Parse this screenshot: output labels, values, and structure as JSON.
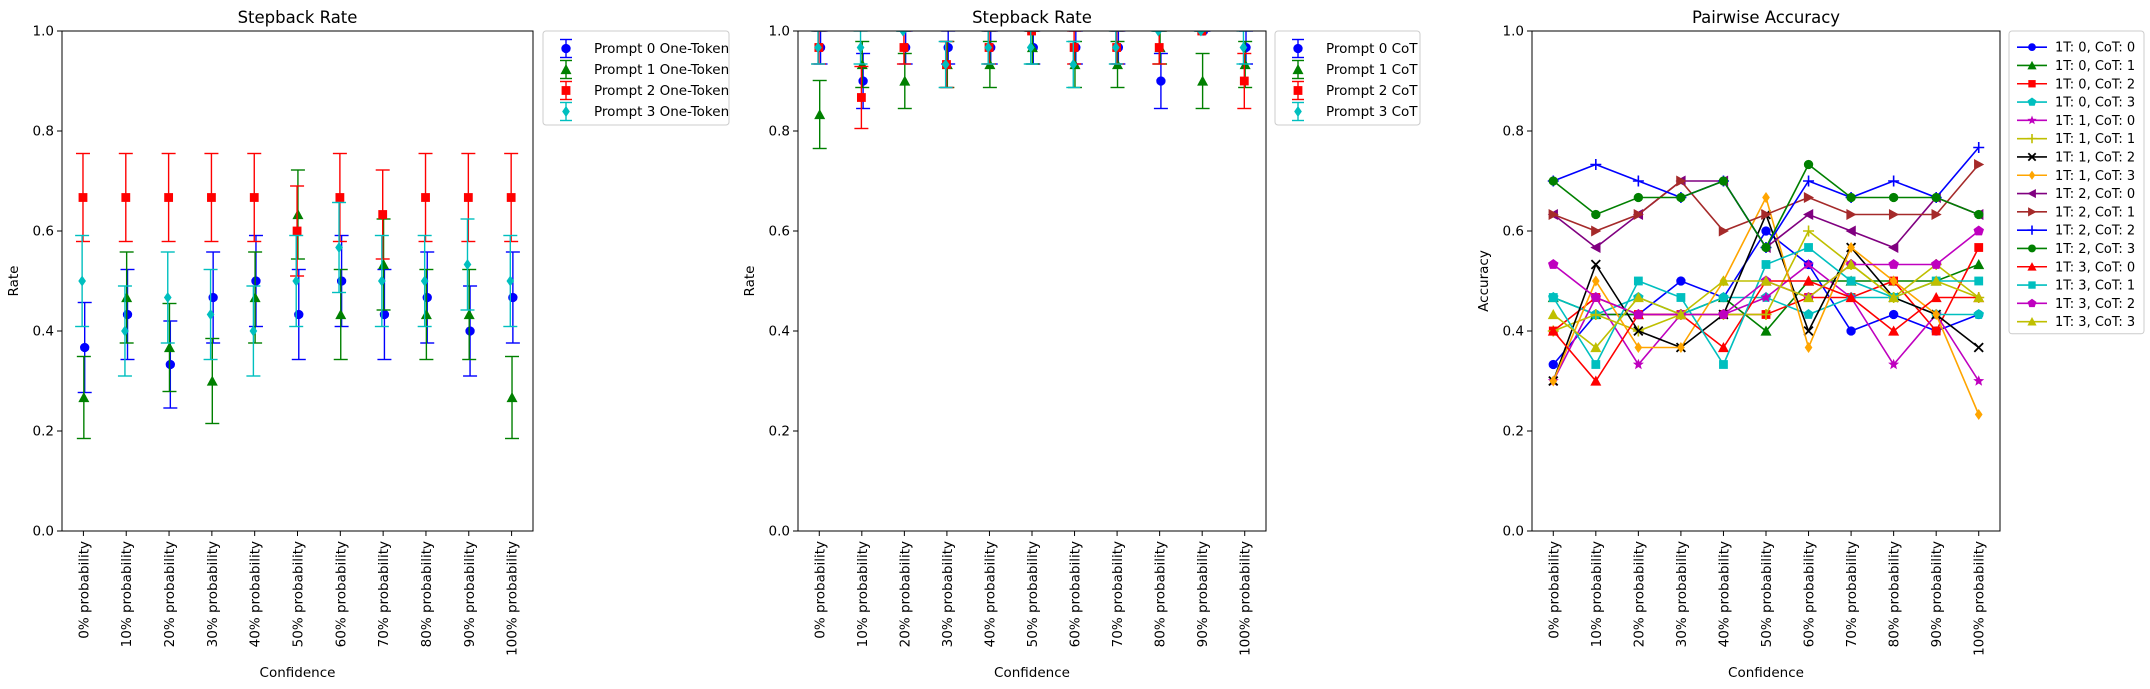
{
  "chart_data": [
    {
      "type": "scatter",
      "title": "Stepback Rate",
      "xlabel": "Confidence",
      "ylabel": "Rate",
      "ylim": [
        0,
        1
      ],
      "yticks": [
        "0.0",
        "0.2",
        "0.4",
        "0.6",
        "0.8",
        "1.0"
      ],
      "categories": [
        "0% probability",
        "10% probability",
        "20% probability",
        "30% probability",
        "40% probability",
        "50% probability",
        "60% probability",
        "70% probability",
        "80% probability",
        "90% probability",
        "100% probability"
      ],
      "legend": "upper-right-outside",
      "series": [
        {
          "name": "Prompt 0 One-Token",
          "color": "#0000ff",
          "marker": "circle",
          "offset": 0.03,
          "values": [
            0.367,
            0.433,
            0.333,
            0.467,
            0.5,
            0.433,
            0.5,
            0.433,
            0.467,
            0.4,
            0.467
          ],
          "err": [
            0.09,
            0.09,
            0.087,
            0.091,
            0.091,
            0.09,
            0.091,
            0.09,
            0.091,
            0.09,
            0.091
          ]
        },
        {
          "name": "Prompt 1 One-Token",
          "color": "#008000",
          "marker": "triangle",
          "offset": 0.01,
          "values": [
            0.267,
            0.467,
            0.367,
            0.3,
            0.467,
            0.633,
            0.433,
            0.533,
            0.433,
            0.433,
            0.267
          ],
          "err": [
            0.082,
            0.091,
            0.088,
            0.085,
            0.091,
            0.089,
            0.09,
            0.091,
            0.09,
            0.09,
            0.082
          ]
        },
        {
          "name": "Prompt 2 One-Token",
          "color": "#ff0000",
          "marker": "square",
          "offset": -0.01,
          "values": [
            0.667,
            0.667,
            0.667,
            0.667,
            0.667,
            0.6,
            0.667,
            0.633,
            0.667,
            0.667,
            0.667
          ],
          "err": [
            0.088,
            0.088,
            0.088,
            0.088,
            0.088,
            0.09,
            0.088,
            0.089,
            0.088,
            0.088,
            0.088
          ]
        },
        {
          "name": "Prompt 3 One-Token",
          "color": "#00bfbf",
          "marker": "diamond",
          "offset": -0.03,
          "values": [
            0.5,
            0.4,
            0.467,
            0.433,
            0.4,
            0.5,
            0.567,
            0.5,
            0.5,
            0.533,
            0.5
          ],
          "err": [
            0.091,
            0.09,
            0.091,
            0.09,
            0.09,
            0.091,
            0.09,
            0.091,
            0.091,
            0.091,
            0.091
          ]
        }
      ]
    },
    {
      "type": "scatter",
      "title": "Stepback Rate",
      "xlabel": "Confidence",
      "ylabel": "Rate",
      "ylim": [
        0,
        1
      ],
      "yticks": [
        "0.0",
        "0.2",
        "0.4",
        "0.6",
        "0.8",
        "1.0"
      ],
      "categories": [
        "0% probability",
        "10% probability",
        "20% probability",
        "30% probability",
        "40% probability",
        "50% probability",
        "60% probability",
        "70% probability",
        "80% probability",
        "90% probability",
        "100% probability"
      ],
      "legend": "upper-right-outside",
      "series": [
        {
          "name": "Prompt 0 CoT",
          "color": "#0000ff",
          "marker": "circle",
          "offset": 0.03,
          "values": [
            0.967,
            0.9,
            0.967,
            0.967,
            0.967,
            0.967,
            0.967,
            0.967,
            0.9,
            1.0,
            0.967
          ],
          "err": [
            0.033,
            0.055,
            0.033,
            0.033,
            0.033,
            0.033,
            0.033,
            0.033,
            0.055,
            0.0,
            0.033
          ]
        },
        {
          "name": "Prompt 1 CoT",
          "color": "#008000",
          "marker": "triangle",
          "offset": 0.01,
          "values": [
            0.833,
            0.933,
            0.9,
            0.933,
            0.933,
            0.967,
            0.933,
            0.933,
            0.967,
            0.9,
            0.933
          ],
          "err": [
            0.068,
            0.046,
            0.055,
            0.046,
            0.046,
            0.033,
            0.046,
            0.046,
            0.033,
            0.055,
            0.046
          ]
        },
        {
          "name": "Prompt 2 CoT",
          "color": "#ff0000",
          "marker": "square",
          "offset": -0.01,
          "values": [
            0.967,
            0.867,
            0.967,
            0.933,
            0.967,
            1.0,
            0.967,
            0.967,
            0.967,
            1.0,
            0.9
          ],
          "err": [
            0.033,
            0.062,
            0.033,
            0.046,
            0.033,
            0.0,
            0.033,
            0.033,
            0.033,
            0.0,
            0.055
          ]
        },
        {
          "name": "Prompt 3 CoT",
          "color": "#00bfbf",
          "marker": "diamond",
          "offset": -0.03,
          "values": [
            0.967,
            0.967,
            1.0,
            0.933,
            0.967,
            0.967,
            0.933,
            0.967,
            1.0,
            1.0,
            0.967
          ],
          "err": [
            0.033,
            0.033,
            0.0,
            0.046,
            0.033,
            0.033,
            0.046,
            0.033,
            0.0,
            0.0,
            0.033
          ]
        }
      ]
    },
    {
      "type": "line",
      "title": "Pairwise Accuracy",
      "xlabel": "Confidence",
      "ylabel": "Accuracy",
      "ylim": [
        0,
        1
      ],
      "yticks": [
        "0.0",
        "0.2",
        "0.4",
        "0.6",
        "0.8",
        "1.0"
      ],
      "categories": [
        "0% probability",
        "10% probability",
        "20% probability",
        "30% probability",
        "40% probability",
        "50% probability",
        "60% probability",
        "70% probability",
        "80% probability",
        "90% probability",
        "100% probability"
      ],
      "legend": "upper-right-outside",
      "series": [
        {
          "name": "1T: 0, CoT: 0",
          "color": "#0000ff",
          "marker": "circle",
          "values": [
            0.333,
            0.433,
            0.433,
            0.5,
            0.467,
            0.6,
            0.533,
            0.4,
            0.433,
            0.4,
            0.433
          ]
        },
        {
          "name": "1T: 0, CoT: 1",
          "color": "#008000",
          "marker": "triangle",
          "values": [
            0.467,
            0.433,
            0.433,
            0.433,
            0.467,
            0.4,
            0.5,
            0.5,
            0.5,
            0.5,
            0.533
          ]
        },
        {
          "name": "1T: 0, CoT: 2",
          "color": "#ff0000",
          "marker": "square",
          "values": [
            0.4,
            0.467,
            0.433,
            0.433,
            0.433,
            0.433,
            0.467,
            0.467,
            0.5,
            0.4,
            0.567
          ]
        },
        {
          "name": "1T: 0, CoT: 3",
          "color": "#00bfbf",
          "marker": "pentagon",
          "values": [
            0.467,
            0.433,
            0.467,
            0.433,
            0.467,
            0.467,
            0.433,
            0.467,
            0.467,
            0.433,
            0.433
          ]
        },
        {
          "name": "1T: 1, CoT: 0",
          "color": "#bf00bf",
          "marker": "star",
          "values": [
            0.3,
            0.467,
            0.333,
            0.433,
            0.433,
            0.467,
            0.533,
            0.467,
            0.333,
            0.433,
            0.3
          ]
        },
        {
          "name": "1T: 1, CoT: 1",
          "color": "#bfbf00",
          "marker": "plus",
          "values": [
            0.4,
            0.433,
            0.4,
            0.433,
            0.433,
            0.433,
            0.6,
            0.533,
            0.467,
            0.533,
            0.467
          ]
        },
        {
          "name": "1T: 1, CoT: 2",
          "color": "#000000",
          "marker": "x",
          "values": [
            0.3,
            0.533,
            0.4,
            0.367,
            0.433,
            0.633,
            0.4,
            0.567,
            0.467,
            0.433,
            0.367
          ]
        },
        {
          "name": "1T: 1, CoT: 3",
          "color": "#ffa500",
          "marker": "diamond",
          "values": [
            0.3,
            0.5,
            0.367,
            0.367,
            0.5,
            0.667,
            0.367,
            0.567,
            0.5,
            0.433,
            0.233
          ]
        },
        {
          "name": "1T: 2, CoT: 0",
          "color": "#800080",
          "marker": "tri-left",
          "values": [
            0.633,
            0.567,
            0.633,
            0.7,
            0.7,
            0.567,
            0.633,
            0.6,
            0.567,
            0.667,
            0.633
          ]
        },
        {
          "name": "1T: 2, CoT: 1",
          "color": "#a52a2a",
          "marker": "tri-right",
          "values": [
            0.633,
            0.6,
            0.633,
            0.7,
            0.6,
            0.633,
            0.667,
            0.633,
            0.633,
            0.633,
            0.733
          ]
        },
        {
          "name": "1T: 2, CoT: 2",
          "color": "#0000ff",
          "marker": "plus",
          "values": [
            0.7,
            0.733,
            0.7,
            0.667,
            0.7,
            0.567,
            0.7,
            0.667,
            0.7,
            0.667,
            0.767
          ]
        },
        {
          "name": "1T: 2, CoT: 3",
          "color": "#008000",
          "marker": "circle",
          "values": [
            0.7,
            0.633,
            0.667,
            0.667,
            0.7,
            0.567,
            0.733,
            0.667,
            0.667,
            0.667,
            0.633
          ]
        },
        {
          "name": "1T: 3, CoT: 0",
          "color": "#ff0000",
          "marker": "triangle",
          "values": [
            0.4,
            0.3,
            0.433,
            0.433,
            0.367,
            0.5,
            0.5,
            0.467,
            0.4,
            0.467,
            0.467
          ]
        },
        {
          "name": "1T: 3, CoT: 1",
          "color": "#00bfbf",
          "marker": "square",
          "values": [
            0.467,
            0.333,
            0.5,
            0.467,
            0.333,
            0.533,
            0.567,
            0.5,
            0.467,
            0.5,
            0.5
          ]
        },
        {
          "name": "1T: 3, CoT: 2",
          "color": "#bf00bf",
          "marker": "pentagon",
          "values": [
            0.533,
            0.467,
            0.433,
            0.433,
            0.433,
            0.5,
            0.467,
            0.533,
            0.533,
            0.533,
            0.6
          ]
        },
        {
          "name": "1T: 3, CoT: 3",
          "color": "#bfbf00",
          "marker": "triangle",
          "values": [
            0.433,
            0.367,
            0.467,
            0.433,
            0.5,
            0.5,
            0.467,
            0.533,
            0.467,
            0.5,
            0.467
          ]
        }
      ]
    }
  ]
}
